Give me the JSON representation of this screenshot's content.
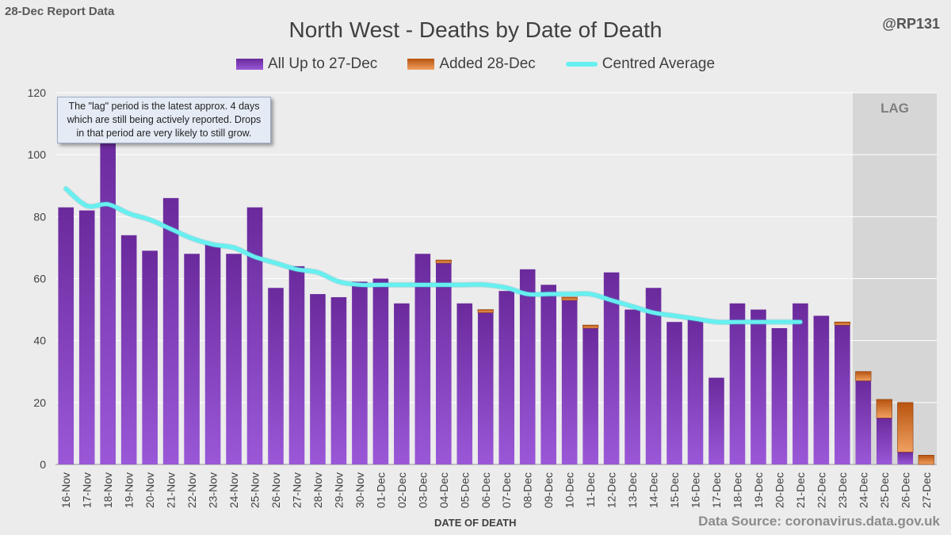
{
  "header": {
    "report_label": "28-Dec Report Data",
    "handle": "@RP131"
  },
  "footer": {
    "source": "Data Source: coronavirus.data.gov.uk"
  },
  "chart_data": {
    "type": "bar",
    "title": "North West - Deaths by Date of Death",
    "xlabel": "DATE OF DEATH",
    "ylabel": "",
    "ylim": [
      0,
      120
    ],
    "yticks": [
      0,
      20,
      40,
      60,
      80,
      100,
      120
    ],
    "grid": true,
    "stacked": true,
    "legend_position": "top",
    "lag_label": "LAG",
    "lag_categories": [
      "24-Dec",
      "25-Dec",
      "26-Dec",
      "27-Dec"
    ],
    "annotation": "The \"lag\" period is the latest approx. 4 days which are still being actively reported.  Drops in that period are very likely to still grow.",
    "categories": [
      "16-Nov",
      "17-Nov",
      "18-Nov",
      "19-Nov",
      "20-Nov",
      "21-Nov",
      "22-Nov",
      "23-Nov",
      "24-Nov",
      "25-Nov",
      "26-Nov",
      "27-Nov",
      "28-Nov",
      "29-Nov",
      "30-Nov",
      "01-Dec",
      "02-Dec",
      "03-Dec",
      "04-Dec",
      "05-Dec",
      "06-Dec",
      "07-Dec",
      "08-Dec",
      "09-Dec",
      "10-Dec",
      "11-Dec",
      "12-Dec",
      "13-Dec",
      "14-Dec",
      "15-Dec",
      "16-Dec",
      "17-Dec",
      "18-Dec",
      "19-Dec",
      "20-Dec",
      "21-Dec",
      "22-Dec",
      "23-Dec",
      "24-Dec",
      "25-Dec",
      "26-Dec",
      "27-Dec"
    ],
    "series": [
      {
        "name": "All Up to 27-Dec",
        "kind": "bar",
        "color": "#7030a0",
        "values": [
          83,
          82,
          108,
          74,
          69,
          86,
          68,
          71,
          68,
          83,
          57,
          64,
          55,
          54,
          59,
          60,
          52,
          68,
          65,
          52,
          49,
          56,
          63,
          58,
          53,
          44,
          62,
          50,
          57,
          46,
          47,
          28,
          52,
          50,
          44,
          52,
          48,
          45,
          27,
          15,
          4,
          0
        ]
      },
      {
        "name": "Added 28-Dec",
        "kind": "bar",
        "color": "#c55a11",
        "values": [
          0,
          0,
          0,
          0,
          0,
          0,
          0,
          0,
          0,
          0,
          0,
          0,
          0,
          0,
          0,
          0,
          0,
          0,
          1,
          0,
          1,
          0,
          0,
          0,
          1,
          1,
          0,
          0,
          0,
          0,
          0,
          0,
          0,
          0,
          0,
          0,
          0,
          1,
          3,
          6,
          16,
          3
        ]
      },
      {
        "name": "Centred Average",
        "kind": "line",
        "color": "#66f0f0",
        "values": [
          89,
          83.5,
          84,
          81,
          79,
          76,
          73,
          71,
          70,
          67,
          65,
          63,
          62,
          59,
          58,
          58,
          58,
          58,
          58,
          58,
          58,
          57,
          55,
          55,
          55,
          55,
          53,
          51,
          49,
          48,
          47,
          46,
          46,
          46,
          46,
          46,
          null,
          null,
          null,
          null,
          null,
          null
        ]
      }
    ]
  }
}
